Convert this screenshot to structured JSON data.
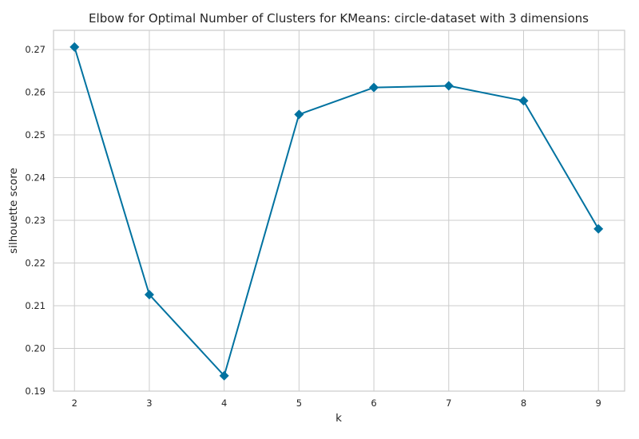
{
  "chart_data": {
    "type": "line",
    "title": "Elbow for Optimal Number of Clusters for KMeans: circle-dataset with 3 dimensions",
    "xlabel": "k",
    "ylabel": "silhouette score",
    "x": [
      2,
      3,
      4,
      5,
      6,
      7,
      8,
      9
    ],
    "series": [
      {
        "values": [
          0.2706,
          0.2126,
          0.1936,
          0.2548,
          0.2611,
          0.2615,
          0.258,
          0.228
        ],
        "color": "#0072a0",
        "marker": "diamond"
      }
    ],
    "xticks": [
      "2",
      "3",
      "4",
      "5",
      "6",
      "7",
      "8",
      "9"
    ],
    "yticks": [
      "0.19",
      "0.20",
      "0.21",
      "0.22",
      "0.23",
      "0.24",
      "0.25",
      "0.26",
      "0.27"
    ],
    "xlim": [
      1.72,
      9.35
    ],
    "ylim": [
      0.19,
      0.2745
    ],
    "grid": true,
    "legend": false
  }
}
